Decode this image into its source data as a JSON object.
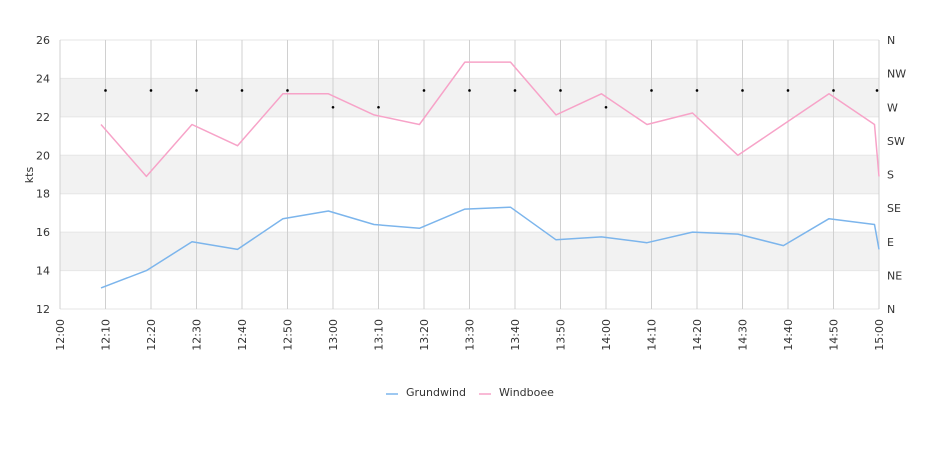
{
  "chart_data": {
    "type": "line",
    "ylabel": "kts",
    "ylim": [
      12,
      26
    ],
    "y_ticks": [
      "12",
      "14",
      "16",
      "18",
      "20",
      "22",
      "24",
      "26"
    ],
    "x_ticks": [
      "12:00",
      "12:10",
      "12:20",
      "12:30",
      "12:40",
      "12:50",
      "13:00",
      "13:10",
      "13:20",
      "13:30",
      "13:40",
      "13:50",
      "14:00",
      "14:10",
      "14:20",
      "14:30",
      "14:40",
      "14:50",
      "15:00"
    ],
    "right_axis_ticks": [
      "N",
      "NE",
      "E",
      "SE",
      "S",
      "SW",
      "W",
      "NW",
      "N"
    ],
    "legend_position": "bottom-center",
    "grid": true,
    "series": [
      {
        "name": "Grundwind",
        "color": "#7cb5ec",
        "points": [
          [
            "12:09",
            13.1
          ],
          [
            "12:19",
            14.0
          ],
          [
            "12:29",
            15.5
          ],
          [
            "12:39",
            15.1
          ],
          [
            "12:49",
            16.7
          ],
          [
            "12:59",
            17.1
          ],
          [
            "13:09",
            16.4
          ],
          [
            "13:19",
            16.2
          ],
          [
            "13:29",
            17.2
          ],
          [
            "13:39",
            17.3
          ],
          [
            "13:49",
            15.6
          ],
          [
            "13:59",
            15.75
          ],
          [
            "14:09",
            15.45
          ],
          [
            "14:19",
            16.0
          ],
          [
            "14:29",
            15.9
          ],
          [
            "14:39",
            15.3
          ],
          [
            "14:49",
            16.7
          ],
          [
            "14:59",
            16.4
          ],
          [
            "15:00",
            15.1
          ]
        ]
      },
      {
        "name": "Windboee",
        "color": "#f7a3c8",
        "points": [
          [
            "12:09",
            21.6
          ],
          [
            "12:19",
            18.9
          ],
          [
            "12:29",
            21.6
          ],
          [
            "12:39",
            20.5
          ],
          [
            "12:49",
            23.2
          ],
          [
            "12:59",
            23.2
          ],
          [
            "13:09",
            22.1
          ],
          [
            "13:19",
            21.6
          ],
          [
            "13:29",
            24.85
          ],
          [
            "13:39",
            24.85
          ],
          [
            "13:49",
            22.1
          ],
          [
            "13:59",
            23.2
          ],
          [
            "14:09",
            21.6
          ],
          [
            "14:19",
            22.2
          ],
          [
            "14:29",
            20.0
          ],
          [
            "14:39",
            21.6
          ],
          [
            "14:49",
            23.2
          ],
          [
            "14:59",
            21.6
          ],
          [
            "15:00",
            18.9
          ]
        ]
      }
    ],
    "direction_series": {
      "color": "#000000",
      "points": [
        [
          "12:10",
          "WNW"
        ],
        [
          "12:20",
          "WNW"
        ],
        [
          "12:30",
          "WNW"
        ],
        [
          "12:40",
          "WNW"
        ],
        [
          "12:50",
          "WNW"
        ],
        [
          "13:00",
          "W"
        ],
        [
          "13:10",
          "W"
        ],
        [
          "13:20",
          "WNW"
        ],
        [
          "13:30",
          "WNW"
        ],
        [
          "13:40",
          "WNW"
        ],
        [
          "13:50",
          "WNW"
        ],
        [
          "14:00",
          "W"
        ],
        [
          "14:10",
          "WNW"
        ],
        [
          "14:20",
          "WNW"
        ],
        [
          "14:30",
          "WNW"
        ],
        [
          "14:40",
          "WNW"
        ],
        [
          "14:50",
          "WNW"
        ],
        [
          "15:00",
          "WNW"
        ]
      ]
    }
  }
}
